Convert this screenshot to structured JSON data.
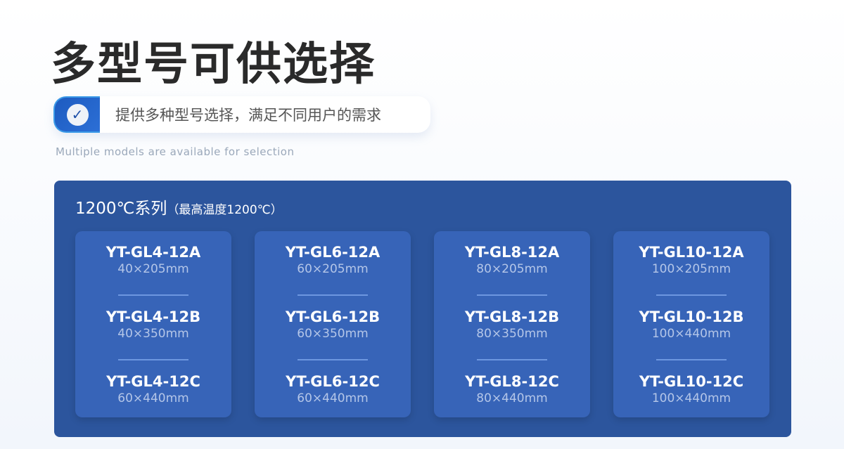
{
  "title": "多型号可供选择",
  "subtitle": "提供多种型号选择，满足不同用户的需求",
  "subtitle_en": "Multiple models are available for selection",
  "panel": {
    "heading": "1200℃系列",
    "note": "（最高温度1200℃）",
    "columns": [
      {
        "items": [
          {
            "model": "YT-GL4-12A",
            "size": "40×205mm"
          },
          {
            "model": "YT-GL4-12B",
            "size": "40×350mm"
          },
          {
            "model": "YT-GL4-12C",
            "size": "60×440mm"
          }
        ]
      },
      {
        "items": [
          {
            "model": "YT-GL6-12A",
            "size": "60×205mm"
          },
          {
            "model": "YT-GL6-12B",
            "size": "60×350mm"
          },
          {
            "model": "YT-GL6-12C",
            "size": "60×440mm"
          }
        ]
      },
      {
        "items": [
          {
            "model": "YT-GL8-12A",
            "size": "80×205mm"
          },
          {
            "model": "YT-GL8-12B",
            "size": "80×350mm"
          },
          {
            "model": "YT-GL8-12C",
            "size": "80×440mm"
          }
        ]
      },
      {
        "items": [
          {
            "model": "YT-GL10-12A",
            "size": "100×205mm"
          },
          {
            "model": "YT-GL10-12B",
            "size": "100×440mm"
          },
          {
            "model": "YT-GL10-12C",
            "size": "100×440mm"
          }
        ]
      }
    ]
  }
}
